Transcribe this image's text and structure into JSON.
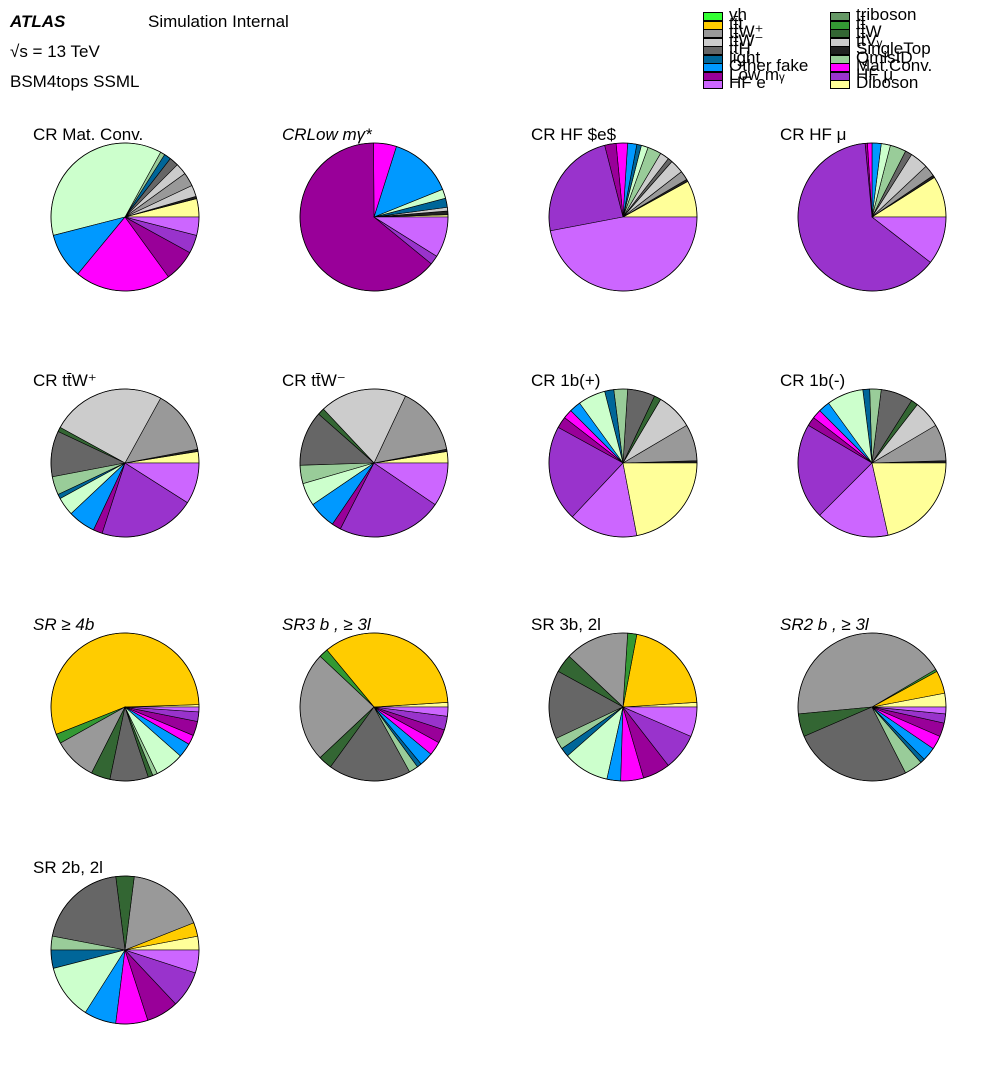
{
  "header": {
    "experiment": "ATLAS",
    "status": "Simulation Internal",
    "energy": "√s = 13 TeV",
    "analysis": "BSM4tops SSML"
  },
  "legend": [
    {
      "label": "vh",
      "color": "#33ff33"
    },
    {
      "label": "tt̄t",
      "color": "#ffcc00"
    },
    {
      "label": "tt̄W⁺",
      "color": "#999999"
    },
    {
      "label": "tt̄W⁻",
      "color": "#cccccc"
    },
    {
      "label": "tt̄H",
      "color": "#666666"
    },
    {
      "label": "light",
      "color": "#006699"
    },
    {
      "label": "Other fake",
      "color": "#0099ff"
    },
    {
      "label": "Low mᵧ",
      "color": "#990099"
    },
    {
      "label": "HF e",
      "color": "#cc66ff"
    },
    {
      "label": "triboson",
      "color": "#669966"
    },
    {
      "label": "tt̄",
      "color": "#339933"
    },
    {
      "label": "tt̄W",
      "color": "#336633"
    },
    {
      "label": "tt̄Vᵧ",
      "color": "#cccccc"
    },
    {
      "label": "SingleTop",
      "color": "#222222"
    },
    {
      "label": "QmisID",
      "color": "#99cc99"
    },
    {
      "label": "Mat.Conv.",
      "color": "#ff00ff"
    },
    {
      "label": "HF μ",
      "color": "#9933cc"
    },
    {
      "label": "Diboson",
      "color": "#ffff99"
    }
  ],
  "chart_data": [
    {
      "type": "pie",
      "title": "CR Mat. Conv.",
      "values": [
        {
          "color": "#ffff99",
          "value": 4
        },
        {
          "color": "#222222",
          "value": 0.5
        },
        {
          "color": "#cccccc",
          "value": 2.5
        },
        {
          "color": "#999999",
          "value": 3
        },
        {
          "color": "#cccccc",
          "value": 2.5
        },
        {
          "color": "#666666",
          "value": 2
        },
        {
          "color": "#006699",
          "value": 1.5
        },
        {
          "color": "#99cc99",
          "value": 1
        },
        {
          "color": "#ccffcc",
          "value": 37
        },
        {
          "color": "#0099ff",
          "value": 10
        },
        {
          "color": "#ff00ff",
          "value": 21
        },
        {
          "color": "#990099",
          "value": 7
        },
        {
          "color": "#9933cc",
          "value": 4
        },
        {
          "color": "#cc66ff",
          "value": 4
        }
      ]
    },
    {
      "type": "pie",
      "title": "CRLow mγ*",
      "values": [
        {
          "color": "#ffff99",
          "value": 0.5
        },
        {
          "color": "#222222",
          "value": 0.8
        },
        {
          "color": "#cccccc",
          "value": 0.8
        },
        {
          "color": "#006699",
          "value": 2
        },
        {
          "color": "#ccffcc",
          "value": 2
        },
        {
          "color": "#0099ff",
          "value": 14
        },
        {
          "color": "#ff00ff",
          "value": 5
        },
        {
          "color": "#990099",
          "value": 64
        },
        {
          "color": "#9933cc",
          "value": 2
        },
        {
          "color": "#cc66ff",
          "value": 8.9
        }
      ]
    },
    {
      "type": "pie",
      "title": "CR HF $e$",
      "values": [
        {
          "color": "#ffff99",
          "value": 8
        },
        {
          "color": "#222222",
          "value": 0.5
        },
        {
          "color": "#999999",
          "value": 2
        },
        {
          "color": "#cccccc",
          "value": 3
        },
        {
          "color": "#666666",
          "value": 1
        },
        {
          "color": "#cccccc",
          "value": 2
        },
        {
          "color": "#99cc99",
          "value": 3
        },
        {
          "color": "#ccffcc",
          "value": 1.5
        },
        {
          "color": "#006699",
          "value": 1
        },
        {
          "color": "#0099ff",
          "value": 2
        },
        {
          "color": "#ff00ff",
          "value": 2.5
        },
        {
          "color": "#990099",
          "value": 2.5
        },
        {
          "color": "#9933cc",
          "value": 24
        },
        {
          "color": "#cc66ff",
          "value": 47
        }
      ]
    },
    {
      "type": "pie",
      "title": "CR HF μ",
      "values": [
        {
          "color": "#ffff99",
          "value": 9
        },
        {
          "color": "#222222",
          "value": 0.5
        },
        {
          "color": "#999999",
          "value": 2.5
        },
        {
          "color": "#cccccc",
          "value": 4
        },
        {
          "color": "#666666",
          "value": 1.5
        },
        {
          "color": "#99cc99",
          "value": 3.5
        },
        {
          "color": "#ccffcc",
          "value": 2
        },
        {
          "color": "#0099ff",
          "value": 2
        },
        {
          "color": "#ff00ff",
          "value": 1
        },
        {
          "color": "#990099",
          "value": 0.5
        },
        {
          "color": "#9933cc",
          "value": 63
        },
        {
          "color": "#cc66ff",
          "value": 10.5
        }
      ]
    },
    {
      "type": "pie",
      "title": "CR tt̄W⁺",
      "values": [
        {
          "color": "#ffff99",
          "value": 2.5
        },
        {
          "color": "#222222",
          "value": 0.5
        },
        {
          "color": "#999999",
          "value": 14
        },
        {
          "color": "#cccccc",
          "value": 25
        },
        {
          "color": "#336633",
          "value": 1
        },
        {
          "color": "#666666",
          "value": 10
        },
        {
          "color": "#99cc99",
          "value": 4
        },
        {
          "color": "#006699",
          "value": 1
        },
        {
          "color": "#ccffcc",
          "value": 4
        },
        {
          "color": "#0099ff",
          "value": 6
        },
        {
          "color": "#990099",
          "value": 2
        },
        {
          "color": "#9933cc",
          "value": 21
        },
        {
          "color": "#cc66ff",
          "value": 9
        }
      ]
    },
    {
      "type": "pie",
      "title": "CR tt̄W⁻",
      "values": [
        {
          "color": "#ffff99",
          "value": 2.5
        },
        {
          "color": "#222222",
          "value": 0.5
        },
        {
          "color": "#999999",
          "value": 15
        },
        {
          "color": "#cccccc",
          "value": 19
        },
        {
          "color": "#336633",
          "value": 1.5
        },
        {
          "color": "#666666",
          "value": 12
        },
        {
          "color": "#99cc99",
          "value": 4
        },
        {
          "color": "#ccffcc",
          "value": 5
        },
        {
          "color": "#0099ff",
          "value": 6
        },
        {
          "color": "#990099",
          "value": 2
        },
        {
          "color": "#9933cc",
          "value": 23
        },
        {
          "color": "#cc66ff",
          "value": 9.5
        }
      ]
    },
    {
      "type": "pie",
      "title": "CR 1b(+)",
      "values": [
        {
          "color": "#222222",
          "value": 0.5
        },
        {
          "color": "#999999",
          "value": 8
        },
        {
          "color": "#cccccc",
          "value": 8
        },
        {
          "color": "#336633",
          "value": 1.5
        },
        {
          "color": "#666666",
          "value": 6
        },
        {
          "color": "#99cc99",
          "value": 3
        },
        {
          "color": "#006699",
          "value": 2
        },
        {
          "color": "#ccffcc",
          "value": 6
        },
        {
          "color": "#0099ff",
          "value": 2.5
        },
        {
          "color": "#ff00ff",
          "value": 2
        },
        {
          "color": "#990099",
          "value": 2.5
        },
        {
          "color": "#9933cc",
          "value": 21
        },
        {
          "color": "#cc66ff",
          "value": 15
        },
        {
          "color": "#ffff99",
          "value": 22
        }
      ]
    },
    {
      "type": "pie",
      "title": "CR 1b(-)",
      "values": [
        {
          "color": "#222222",
          "value": 0.5
        },
        {
          "color": "#999999",
          "value": 8
        },
        {
          "color": "#cccccc",
          "value": 6
        },
        {
          "color": "#336633",
          "value": 1.5
        },
        {
          "color": "#666666",
          "value": 7
        },
        {
          "color": "#99cc99",
          "value": 2.5
        },
        {
          "color": "#006699",
          "value": 1.5
        },
        {
          "color": "#ccffcc",
          "value": 8
        },
        {
          "color": "#0099ff",
          "value": 2.5
        },
        {
          "color": "#ff00ff",
          "value": 2
        },
        {
          "color": "#990099",
          "value": 2
        },
        {
          "color": "#9933cc",
          "value": 21
        },
        {
          "color": "#cc66ff",
          "value": 16
        },
        {
          "color": "#ffff99",
          "value": 21.5
        }
      ]
    },
    {
      "type": "pie",
      "title": "SR ≥ 4b",
      "values": [
        {
          "color": "#ffff99",
          "value": 0.5
        },
        {
          "color": "#ffcc00",
          "value": 53
        },
        {
          "color": "#339933",
          "value": 2
        },
        {
          "color": "#999999",
          "value": 9
        },
        {
          "color": "#336633",
          "value": 4
        },
        {
          "color": "#666666",
          "value": 8
        },
        {
          "color": "#336633",
          "value": 1
        },
        {
          "color": "#99cc99",
          "value": 1
        },
        {
          "color": "#ccffcc",
          "value": 6
        },
        {
          "color": "#0099ff",
          "value": 3
        },
        {
          "color": "#ff00ff",
          "value": 2
        },
        {
          "color": "#990099",
          "value": 3
        },
        {
          "color": "#9933cc",
          "value": 2
        },
        {
          "color": "#cc66ff",
          "value": 1
        }
      ]
    },
    {
      "type": "pie",
      "title": "SR3 b , ≥ 3l",
      "values": [
        {
          "color": "#ffff99",
          "value": 1
        },
        {
          "color": "#ffcc00",
          "value": 35
        },
        {
          "color": "#339933",
          "value": 2
        },
        {
          "color": "#999999",
          "value": 24
        },
        {
          "color": "#336633",
          "value": 3
        },
        {
          "color": "#666666",
          "value": 18
        },
        {
          "color": "#99cc99",
          "value": 2
        },
        {
          "color": "#006699",
          "value": 1
        },
        {
          "color": "#0099ff",
          "value": 3
        },
        {
          "color": "#ff00ff",
          "value": 3
        },
        {
          "color": "#990099",
          "value": 3
        },
        {
          "color": "#9933cc",
          "value": 3
        },
        {
          "color": "#cc66ff",
          "value": 2
        }
      ]
    },
    {
      "type": "pie",
      "title": "SR 3b, 2l",
      "values": [
        {
          "color": "#ffff99",
          "value": 1
        },
        {
          "color": "#ffcc00",
          "value": 21
        },
        {
          "color": "#339933",
          "value": 2
        },
        {
          "color": "#999999",
          "value": 14
        },
        {
          "color": "#336633",
          "value": 4
        },
        {
          "color": "#666666",
          "value": 15
        },
        {
          "color": "#99cc99",
          "value": 2.5
        },
        {
          "color": "#006699",
          "value": 2
        },
        {
          "color": "#ccffcc",
          "value": 10
        },
        {
          "color": "#0099ff",
          "value": 3
        },
        {
          "color": "#ff00ff",
          "value": 5
        },
        {
          "color": "#990099",
          "value": 6
        },
        {
          "color": "#9933cc",
          "value": 8
        },
        {
          "color": "#cc66ff",
          "value": 6.5
        }
      ]
    },
    {
      "type": "pie",
      "title": "SR2 b , ≥ 3l",
      "values": [
        {
          "color": "#ffff99",
          "value": 3
        },
        {
          "color": "#ffcc00",
          "value": 5
        },
        {
          "color": "#339933",
          "value": 0.5
        },
        {
          "color": "#999999",
          "value": 43
        },
        {
          "color": "#336633",
          "value": 5
        },
        {
          "color": "#666666",
          "value": 26
        },
        {
          "color": "#99cc99",
          "value": 4
        },
        {
          "color": "#006699",
          "value": 1
        },
        {
          "color": "#0099ff",
          "value": 3
        },
        {
          "color": "#ff00ff",
          "value": 3
        },
        {
          "color": "#990099",
          "value": 3
        },
        {
          "color": "#9933cc",
          "value": 2
        },
        {
          "color": "#cc66ff",
          "value": 1.5
        }
      ]
    },
    {
      "type": "pie",
      "title": "SR 2b, 2l",
      "values": [
        {
          "color": "#ffff99",
          "value": 3
        },
        {
          "color": "#ffcc00",
          "value": 3
        },
        {
          "color": "#999999",
          "value": 17
        },
        {
          "color": "#336633",
          "value": 4
        },
        {
          "color": "#666666",
          "value": 20
        },
        {
          "color": "#99cc99",
          "value": 3
        },
        {
          "color": "#006699",
          "value": 4
        },
        {
          "color": "#ccffcc",
          "value": 12
        },
        {
          "color": "#0099ff",
          "value": 7
        },
        {
          "color": "#ff00ff",
          "value": 7
        },
        {
          "color": "#990099",
          "value": 7
        },
        {
          "color": "#9933cc",
          "value": 8
        },
        {
          "color": "#cc66ff",
          "value": 5
        }
      ]
    }
  ]
}
